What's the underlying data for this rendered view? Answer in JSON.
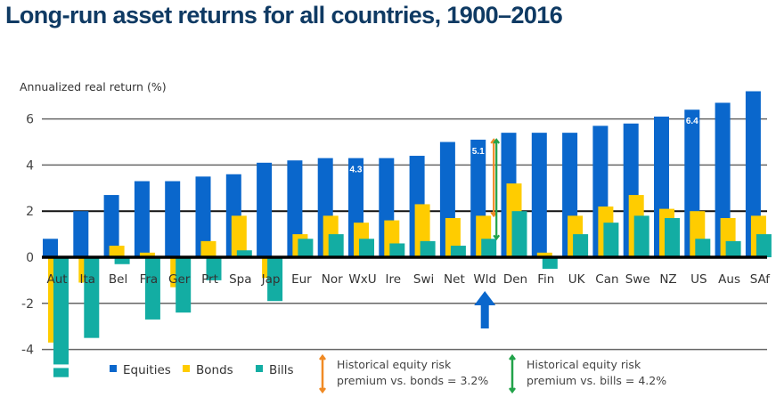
{
  "chart_data": {
    "type": "bar",
    "title": "Long-run asset returns for all countries, 1900–2016",
    "ylabel": "Annualized real return (%)",
    "xlabel": "",
    "ylim": [
      -4.5,
      7.3
    ],
    "yticks": [
      -4,
      -2,
      0,
      2,
      4,
      6
    ],
    "grid": true,
    "legend_position": "bottom",
    "categories": [
      "Aut",
      "Ita",
      "Bel",
      "Fra",
      "Ger",
      "Prt",
      "Spa",
      "Jap",
      "Eur",
      "Nor",
      "WxU",
      "Ire",
      "Swi",
      "Net",
      "Wld",
      "Den",
      "Fin",
      "UK",
      "Can",
      "Swe",
      "NZ",
      "US",
      "Aus",
      "SAf"
    ],
    "series": [
      {
        "name": "Equities",
        "color": "#0a67cc",
        "values": [
          0.8,
          2.0,
          2.7,
          3.3,
          3.3,
          3.5,
          3.6,
          4.1,
          4.2,
          4.3,
          4.3,
          4.3,
          4.4,
          5.0,
          5.1,
          5.4,
          5.4,
          5.4,
          5.7,
          5.8,
          6.1,
          6.4,
          6.7,
          7.2
        ]
      },
      {
        "name": "Bonds",
        "color": "#ffcc00",
        "values": [
          -3.7,
          -1.1,
          0.5,
          0.2,
          -1.3,
          0.7,
          1.8,
          -0.9,
          1.0,
          1.8,
          1.5,
          1.6,
          2.3,
          1.7,
          1.8,
          3.2,
          0.2,
          1.8,
          2.2,
          2.7,
          2.1,
          2.0,
          1.7,
          1.8
        ]
      },
      {
        "name": "Bills",
        "color": "#13ada3",
        "values": [
          -5.2,
          -3.5,
          -0.3,
          -2.7,
          -2.4,
          -1.0,
          0.3,
          -1.9,
          0.8,
          1.0,
          0.8,
          0.6,
          0.7,
          0.5,
          0.8,
          2.0,
          -0.5,
          1.0,
          1.5,
          1.8,
          1.7,
          0.8,
          0.7,
          1.0
        ]
      }
    ],
    "axis_break": {
      "category": "Aut",
      "series": "Bills",
      "note": "bar truncated with break"
    },
    "data_labels": [
      {
        "category": "WxU",
        "series": "Equities",
        "text": "4.3"
      },
      {
        "category": "Wld",
        "series": "Equities",
        "text": "5.1"
      },
      {
        "category": "US",
        "series": "Equities",
        "text": "6.4"
      }
    ],
    "highlight": {
      "category": "Wld",
      "marker": "up-arrow",
      "color": "#0a67cc"
    },
    "annotations": [
      {
        "id": "erp_bonds",
        "color": "#f08a24",
        "from_series": "Bonds",
        "to_series": "Equities",
        "category": "Wld",
        "lines": [
          "Historical equity risk",
          "premium vs. bonds = 3.2%"
        ]
      },
      {
        "id": "erp_bills",
        "color": "#22a34a",
        "from_series": "Bills",
        "to_series": "Equities",
        "category": "Wld",
        "lines": [
          "Historical equity risk",
          "premium vs. bills = 4.2%"
        ]
      }
    ]
  }
}
